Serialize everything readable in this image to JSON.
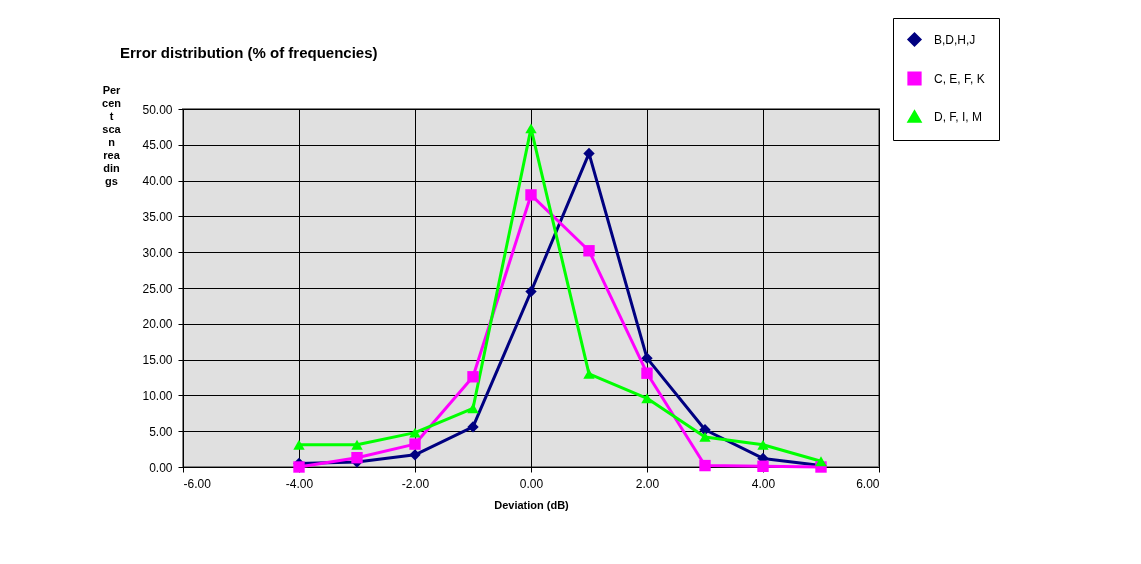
{
  "chart_data": {
    "type": "line",
    "title": "Error distribution (% of frequencies)",
    "xlabel": "Deviation (dB)",
    "ylabel": "Percent scan readings",
    "xlim": [
      -6,
      6
    ],
    "xticks": [
      {
        "value": -6,
        "label": "-6.00"
      },
      {
        "value": -4,
        "label": "-4.00"
      },
      {
        "value": -2,
        "label": "-2.00"
      },
      {
        "value": 0,
        "label": "0.00"
      },
      {
        "value": 2,
        "label": "2.00"
      },
      {
        "value": 4,
        "label": "4.00"
      },
      {
        "value": 6,
        "label": "6.00"
      }
    ],
    "ylim": [
      0,
      50
    ],
    "yticks": [
      {
        "value": 0,
        "label": "0.00"
      },
      {
        "value": 5,
        "label": "5.00"
      },
      {
        "value": 10,
        "label": "10.00"
      },
      {
        "value": 15,
        "label": "15.00"
      },
      {
        "value": 20,
        "label": "20.00"
      },
      {
        "value": 25,
        "label": "25.00"
      },
      {
        "value": 30,
        "label": "30.00"
      },
      {
        "value": 35,
        "label": "35.00"
      },
      {
        "value": 40,
        "label": "40.00"
      },
      {
        "value": 45,
        "label": "45.00"
      },
      {
        "value": 50,
        "label": "50.00"
      }
    ],
    "x": [
      -4,
      -3,
      -2,
      -1,
      0,
      1,
      2,
      3,
      4,
      5
    ],
    "series": [
      {
        "name": "B,D,H,J",
        "color": "#000080",
        "marker": "diamond",
        "values": [
          0.5,
          0.7,
          1.7,
          5.6,
          24.5,
          43.8,
          15.2,
          5.2,
          1.2,
          0.2
        ]
      },
      {
        "name": "C, E, F, K",
        "color": "#ff00ff",
        "marker": "square",
        "values": [
          0,
          1.3,
          3.2,
          12.6,
          38.0,
          30.2,
          13.1,
          0.2,
          0.1,
          0
        ]
      },
      {
        "name": "D, F, I, M",
        "color": "#00ff00",
        "marker": "triangle",
        "values": [
          3.1,
          3.1,
          4.8,
          8.2,
          47.3,
          13.0,
          9.6,
          4.2,
          3.1,
          0.8
        ]
      }
    ],
    "grid": true,
    "legend": "top right"
  }
}
